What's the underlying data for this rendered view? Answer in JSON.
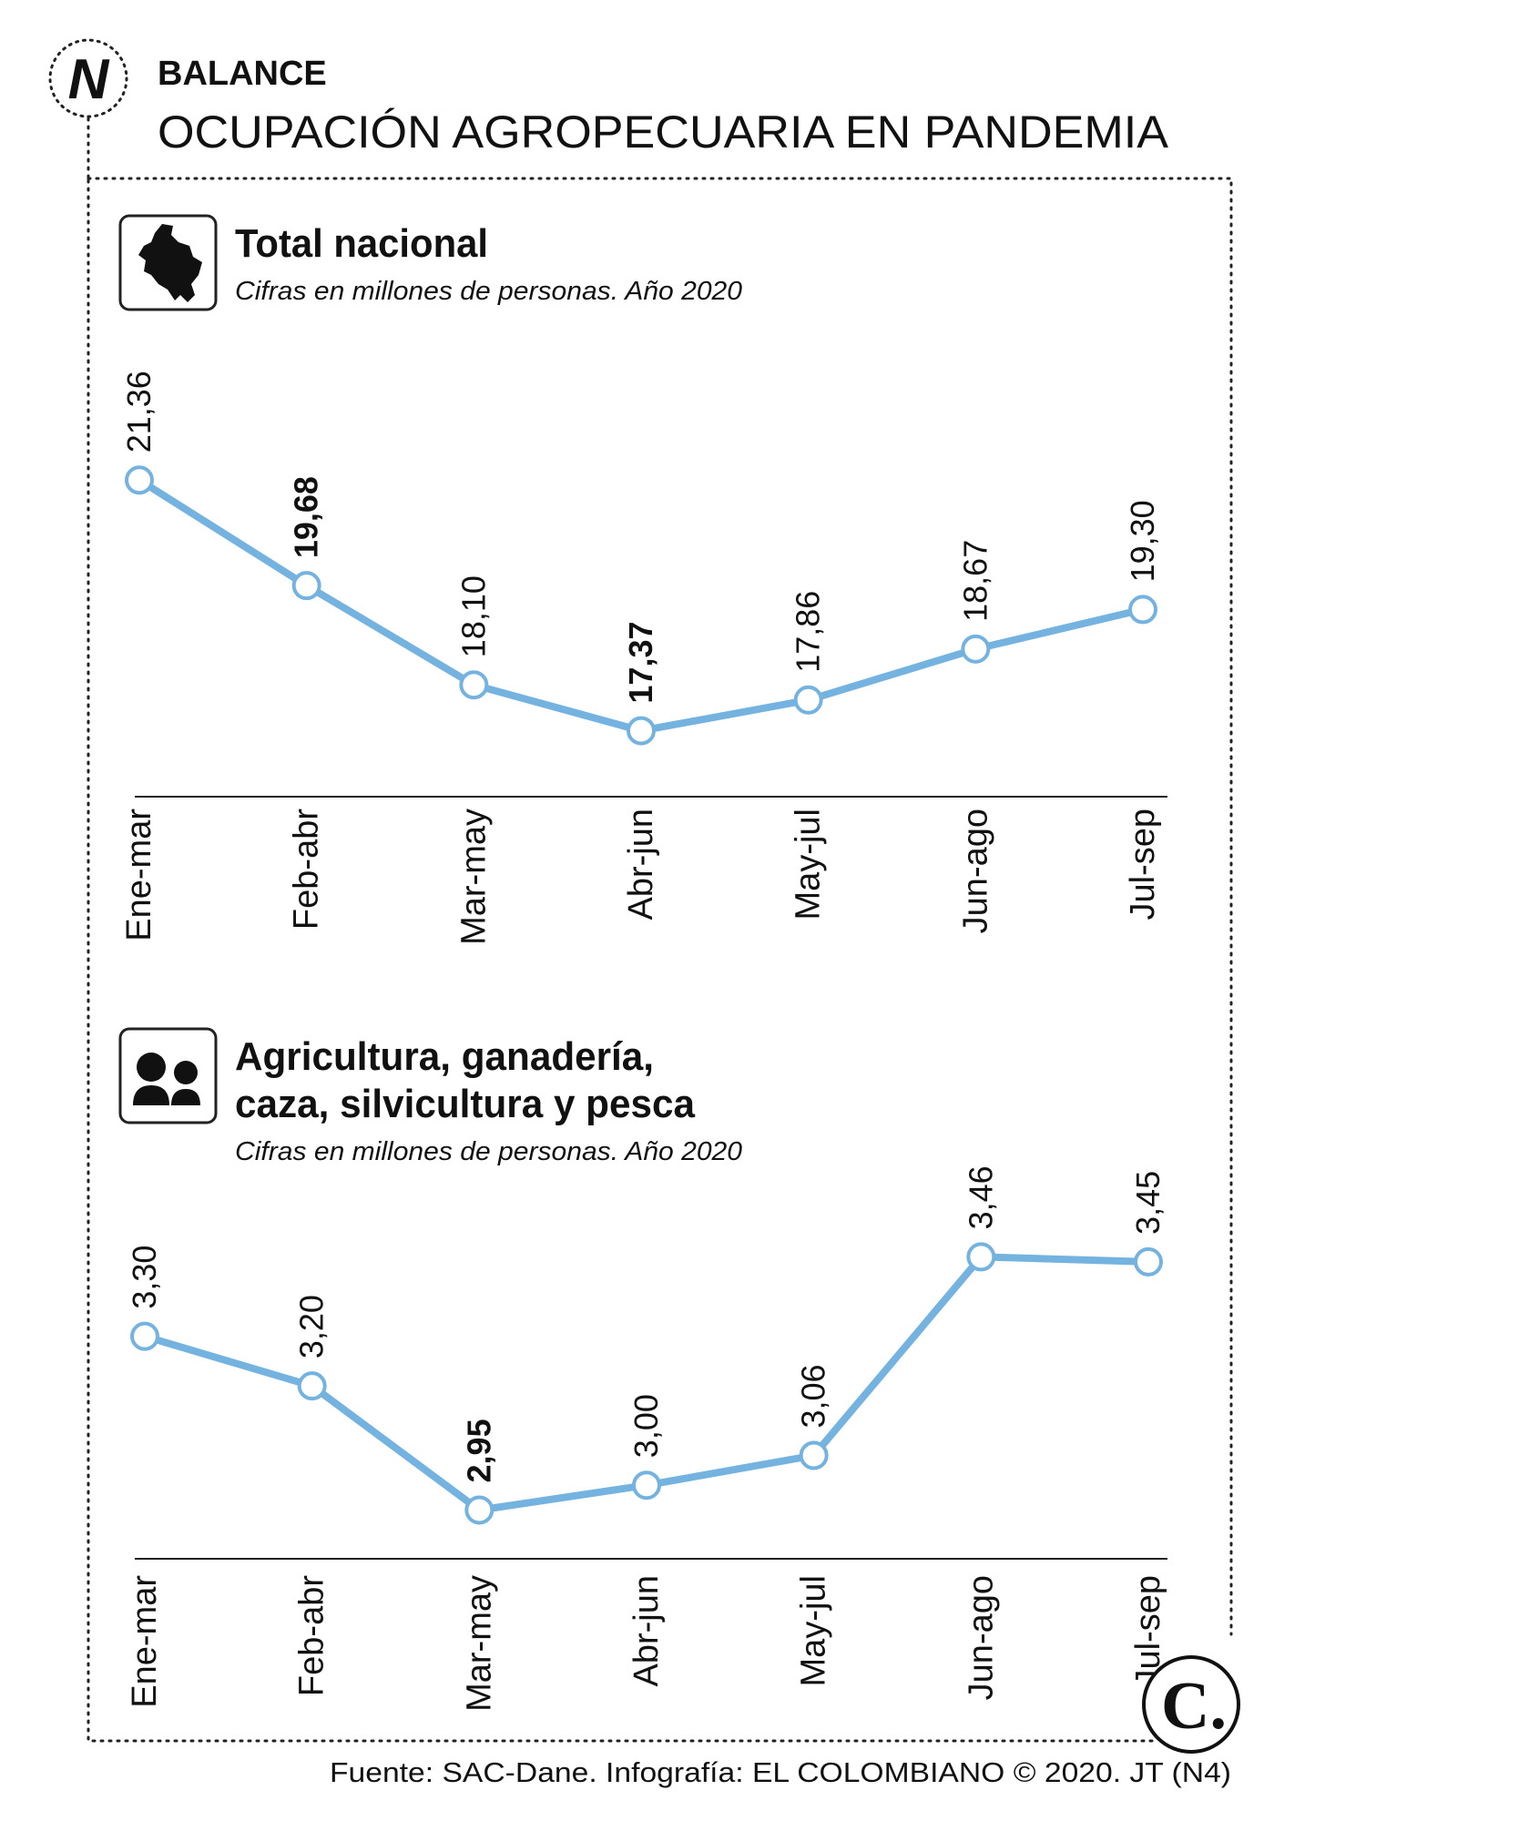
{
  "header": {
    "logo_letter": "N",
    "kicker": "BALANCE",
    "title": "OCUPACIÓN AGROPECUARIA EN PANDEMIA"
  },
  "footer": {
    "source": "Fuente: SAC-Dane. Infografía: EL COLOMBIANO © 2020. JT (N4)",
    "brand_mark": "C."
  },
  "colors": {
    "line": "#74b3e0",
    "marker_fill": "#ffffff",
    "text": "#111111",
    "border": "#222222"
  },
  "chart_data": [
    {
      "type": "line",
      "icon": "colombia-map-icon",
      "title": "Total nacional",
      "subtitle": "Cifras en millones de personas. Año 2020",
      "categories": [
        "Ene-mar",
        "Feb-abr",
        "Mar-may",
        "Abr-jun",
        "May-jul",
        "Jun-ago",
        "Jul-sep"
      ],
      "values": [
        21.36,
        19.68,
        18.1,
        17.37,
        17.86,
        18.67,
        19.3
      ],
      "labels": [
        "21,36",
        "19,68",
        "18,10",
        "17,37",
        "17,86",
        "18,67",
        "19,30"
      ],
      "bold_labels": [
        1,
        3
      ],
      "ylim": [
        16.9,
        21.9
      ]
    },
    {
      "type": "line",
      "icon": "people-icon",
      "title_lines": [
        "Agricultura, ganadería,",
        "caza, silvicultura y pesca"
      ],
      "subtitle": "Cifras en millones de personas. Año 2020",
      "categories": [
        "Ene-mar",
        "Feb-abr",
        "Mar-may",
        "Abr-jun",
        "May-jul",
        "Jun-ago",
        "Jul-sep"
      ],
      "values": [
        3.3,
        3.2,
        2.95,
        3.0,
        3.06,
        3.46,
        3.45
      ],
      "labels": [
        "3,30",
        "3,20",
        "2,95",
        "3,00",
        "3,06",
        "3,46",
        "3,45"
      ],
      "bold_labels": [
        2
      ],
      "ylim": [
        2.905,
        3.547
      ]
    }
  ]
}
